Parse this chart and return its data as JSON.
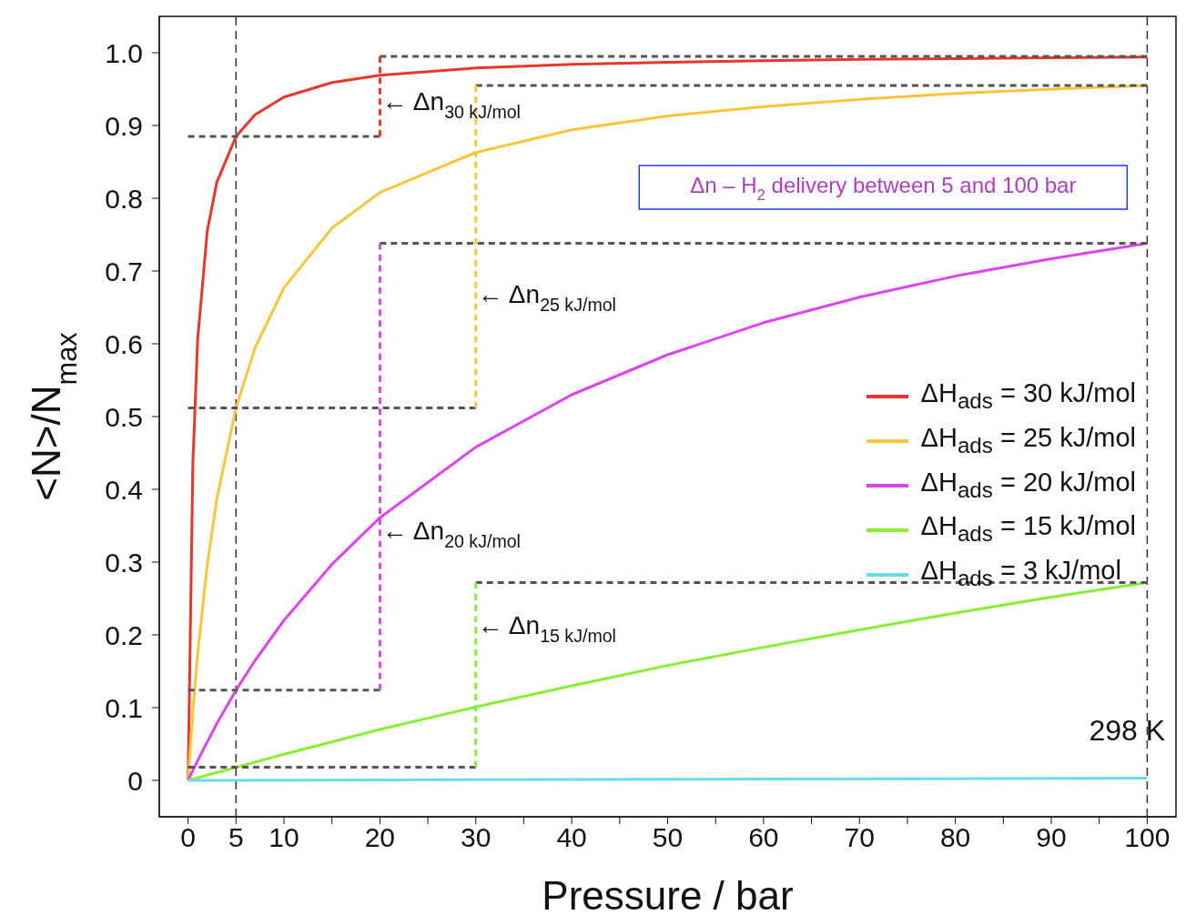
{
  "chart_data": {
    "type": "line",
    "xlabel": "Pressure / bar",
    "ylabel": "<N>/N$_{max}$",
    "xlim": [
      -3,
      103
    ],
    "ylim": [
      -0.05,
      1.05
    ],
    "xticks": [
      0,
      5,
      10,
      {
        "value": 15,
        "label": null
      },
      20,
      {
        "value": 25,
        "label": null
      },
      30,
      {
        "value": 35,
        "label": null
      },
      40,
      {
        "value": 45,
        "label": null
      },
      50,
      {
        "value": 55,
        "label": null
      },
      60,
      {
        "value": 65,
        "label": null
      },
      70,
      {
        "value": 75,
        "label": null
      },
      80,
      {
        "value": 85,
        "label": null
      },
      90,
      {
        "value": 95,
        "label": null
      },
      100
    ],
    "yticks": [
      0,
      0.1,
      0.2,
      0.3,
      0.4,
      0.5,
      0.6,
      0.7,
      0.8,
      0.9,
      {
        "value": 1,
        "label": "1.0"
      }
    ],
    "grid": false,
    "legend": "center right",
    "marker": "none",
    "line_style": "solid",
    "series": [
      {
        "name": "ΔH$_{ads}$ = 30 kJ/mol",
        "color": "#e8362a",
        "x": [
          0,
          0.5,
          1,
          2,
          3,
          5,
          7,
          10,
          15,
          20,
          30,
          40,
          50,
          60,
          70,
          80,
          90,
          100
        ],
        "values": [
          0,
          0.435,
          0.606,
          0.755,
          0.822,
          0.885,
          0.915,
          0.939,
          0.959,
          0.969,
          0.979,
          0.984,
          0.987,
          0.989,
          0.991,
          0.992,
          0.993,
          0.994
        ]
      },
      {
        "name": "ΔH$_{ads}$ = 25 kJ/mol",
        "color": "#fbc43a",
        "x": [
          0,
          0.5,
          1,
          2,
          3,
          5,
          7,
          10,
          15,
          20,
          30,
          40,
          50,
          60,
          70,
          80,
          90,
          100
        ],
        "values": [
          0,
          0.095,
          0.174,
          0.296,
          0.387,
          0.512,
          0.595,
          0.677,
          0.759,
          0.808,
          0.863,
          0.894,
          0.913,
          0.926,
          0.936,
          0.944,
          0.95,
          0.955
        ]
      },
      {
        "name": "ΔH$_{ads}$ = 20 kJ/mol",
        "color": "#dd44ee",
        "x": [
          0,
          0.5,
          1,
          2,
          3,
          5,
          7,
          10,
          15,
          20,
          30,
          40,
          50,
          60,
          70,
          80,
          90,
          100
        ],
        "values": [
          0,
          0.014,
          0.027,
          0.053,
          0.078,
          0.124,
          0.165,
          0.22,
          0.297,
          0.361,
          0.458,
          0.53,
          0.585,
          0.629,
          0.664,
          0.693,
          0.717,
          0.738
        ]
      },
      {
        "name": "ΔH$_{ads}$ = 15 kJ/mol",
        "color": "#88ee33",
        "x": [
          0,
          5,
          10,
          20,
          30,
          40,
          50,
          60,
          70,
          80,
          90,
          100
        ],
        "values": [
          0,
          0.018,
          0.036,
          0.07,
          0.101,
          0.13,
          0.158,
          0.183,
          0.207,
          0.23,
          0.252,
          0.272
        ]
      },
      {
        "name": "ΔH$_{ads}$ = 3 kJ/mol",
        "color": "#66dde8",
        "x": [
          0,
          100
        ],
        "values": [
          0,
          0.003
        ]
      },
      {
        "color": "#555555",
        "line_style": "dashed",
        "x": [
          0,
          20
        ],
        "values": [
          0.885,
          0.885
        ]
      },
      {
        "color": "#555555",
        "line_style": "dashed",
        "x": [
          20,
          100
        ],
        "values": [
          0.995,
          0.995
        ]
      },
      {
        "color": "#e8362a",
        "line_style": "dashed",
        "x": [
          20,
          20
        ],
        "values": [
          0.885,
          0.995
        ]
      },
      {
        "color": "#555555",
        "line_style": "dashed",
        "x": [
          0,
          30
        ],
        "values": [
          0.512,
          0.512
        ]
      },
      {
        "color": "#555555",
        "line_style": "dashed",
        "x": [
          30,
          100
        ],
        "values": [
          0.955,
          0.955
        ]
      },
      {
        "color": "#fbc43a",
        "line_style": "dashed",
        "x": [
          30,
          30
        ],
        "values": [
          0.512,
          0.955
        ]
      },
      {
        "color": "#555555",
        "line_style": "dashed",
        "x": [
          0,
          20
        ],
        "values": [
          0.124,
          0.124
        ]
      },
      {
        "color": "#555555",
        "line_style": "dashed",
        "x": [
          20,
          100
        ],
        "values": [
          0.738,
          0.738
        ]
      },
      {
        "color": "#dd44ee",
        "line_style": "dashed",
        "x": [
          20,
          20
        ],
        "values": [
          0.124,
          0.738
        ]
      },
      {
        "color": "#555555",
        "line_style": "dashed",
        "x": [
          0,
          30
        ],
        "values": [
          0.018,
          0.018
        ]
      },
      {
        "color": "#555555",
        "line_style": "dashed",
        "x": [
          30,
          100
        ],
        "values": [
          0.272,
          0.272
        ]
      },
      {
        "color": "#88ee33",
        "line_style": "dashed",
        "x": [
          30,
          30
        ],
        "values": [
          0.018,
          0.272
        ]
      }
    ],
    "ref_lines": [
      {
        "axis": "x",
        "value": 5,
        "color": "#333333",
        "line_style": "dashed"
      },
      {
        "axis": "x",
        "value": 100,
        "color": "#333333",
        "line_style": "dashed"
      }
    ],
    "annotations": [
      "← Δn$_{30 kJ/mol}$",
      "← Δn$_{25 kJ/mol}$",
      "← Δn$_{20 kJ/mol}$",
      "← Δn$_{15 kJ/mol}$",
      "Δn  – H$_{2}$ delivery between 5 and 100 bar",
      "298 K"
    ]
  }
}
